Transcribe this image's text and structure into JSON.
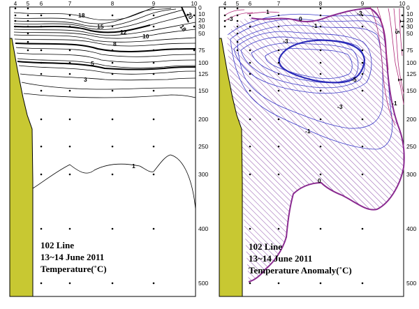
{
  "chart_data": [
    {
      "type": "contour",
      "caption_line1": "102 Line",
      "caption_line2": "13~14 June 2011",
      "caption_line3": "Temperature(˚C)",
      "stations": [
        "4",
        "5",
        "6",
        "7",
        "8",
        "9",
        "10"
      ],
      "depth_ticks": [
        0,
        10,
        20,
        30,
        50,
        75,
        100,
        125,
        150,
        200,
        250,
        300,
        400,
        500
      ],
      "contour_labels": [
        "18",
        "15",
        "12",
        "10",
        "8",
        "5",
        "3",
        "1",
        "18",
        "20"
      ],
      "colors": {
        "contour": "#000000",
        "land": "#c8c832"
      }
    },
    {
      "type": "contour",
      "caption_line1": "102 Line",
      "caption_line2": "13~14 June 2011",
      "caption_line3": "Temperature Anomaly(˚C)",
      "stations": [
        "4",
        "5",
        "6",
        "7",
        "8",
        "9",
        "10"
      ],
      "depth_ticks": [
        0,
        10,
        20,
        30,
        50,
        75,
        100,
        125,
        150,
        200,
        250,
        300,
        400,
        500
      ],
      "contour_labels": [
        "-3",
        "0",
        "1",
        "-1",
        "-3",
        "-5",
        "-3",
        "-1",
        "0",
        "-3",
        "-5",
        "-1",
        "1",
        "1"
      ],
      "colors": {
        "negative": "#3a3ac8",
        "positive": "#a02a8c",
        "hatch": "#8a4aa8",
        "land": "#c8c832"
      }
    }
  ]
}
